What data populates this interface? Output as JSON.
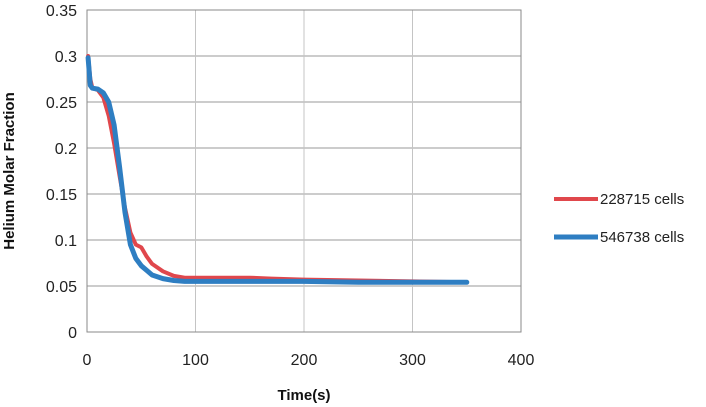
{
  "chart_data": {
    "type": "line",
    "xlabel": "Time(s)",
    "ylabel": "Helium Molar Fraction",
    "xlim": [
      0,
      400
    ],
    "ylim": [
      0,
      0.35
    ],
    "xticks": [
      "0",
      "100",
      "200",
      "300",
      "400"
    ],
    "yticks": [
      "0",
      "0.05",
      "0.1",
      "0.15",
      "0.2",
      "0.25",
      "0.3",
      "0.35"
    ],
    "grid": true,
    "legend_position": "right",
    "series": [
      {
        "name": "228715 cells",
        "color": "#e0474c",
        "x": [
          1,
          3,
          5,
          10,
          15,
          20,
          25,
          30,
          35,
          40,
          45,
          50,
          55,
          60,
          70,
          80,
          90,
          100,
          120,
          150,
          170,
          200,
          250,
          300,
          350
        ],
        "y": [
          0.3,
          0.275,
          0.265,
          0.263,
          0.255,
          0.235,
          0.205,
          0.17,
          0.135,
          0.108,
          0.095,
          0.092,
          0.082,
          0.074,
          0.066,
          0.061,
          0.059,
          0.059,
          0.059,
          0.059,
          0.058,
          0.057,
          0.056,
          0.055,
          0.054
        ]
      },
      {
        "name": "546738 cells",
        "color": "#2e7ec2",
        "x": [
          1,
          3,
          5,
          10,
          15,
          20,
          25,
          30,
          35,
          40,
          45,
          50,
          55,
          60,
          70,
          80,
          90,
          100,
          150,
          200,
          250,
          300,
          350
        ],
        "y": [
          0.298,
          0.268,
          0.265,
          0.264,
          0.26,
          0.25,
          0.225,
          0.18,
          0.13,
          0.095,
          0.08,
          0.072,
          0.067,
          0.062,
          0.058,
          0.056,
          0.055,
          0.055,
          0.055,
          0.055,
          0.054,
          0.054,
          0.054
        ]
      }
    ]
  }
}
